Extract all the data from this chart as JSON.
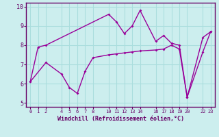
{
  "xlabel": "Windchill (Refroidissement éolien,°C)",
  "line1_x": [
    0,
    1,
    2,
    10,
    11,
    12,
    13,
    14,
    16,
    17,
    18,
    19,
    20,
    22,
    23
  ],
  "line1_y": [
    6.1,
    7.9,
    8.0,
    9.6,
    9.2,
    8.6,
    9.0,
    9.8,
    8.2,
    8.5,
    8.1,
    8.0,
    5.3,
    8.4,
    8.7
  ],
  "line2_x": [
    0,
    2,
    4,
    5,
    6,
    7,
    8,
    10,
    11,
    12,
    13,
    14,
    16,
    17,
    18,
    19,
    20,
    22,
    23
  ],
  "line2_y": [
    6.1,
    7.1,
    6.5,
    5.8,
    5.5,
    6.65,
    7.35,
    7.5,
    7.55,
    7.6,
    7.65,
    7.7,
    7.75,
    7.8,
    8.0,
    7.8,
    5.3,
    7.65,
    8.7
  ],
  "line_color": "#990099",
  "bg_color": "#cceeee",
  "grid_color": "#aadddd",
  "tick_color": "#660066",
  "axis_color": "#660066",
  "ylim": [
    4.8,
    10.2
  ],
  "xlim": [
    -0.5,
    23.5
  ],
  "xticks": [
    0,
    1,
    2,
    4,
    5,
    6,
    7,
    8,
    10,
    11,
    12,
    13,
    14,
    16,
    17,
    18,
    19,
    20,
    22,
    23
  ],
  "yticks": [
    5,
    6,
    7,
    8,
    9,
    10
  ],
  "xlabel_fontsize": 6,
  "xtick_fontsize": 5,
  "ytick_fontsize": 6
}
